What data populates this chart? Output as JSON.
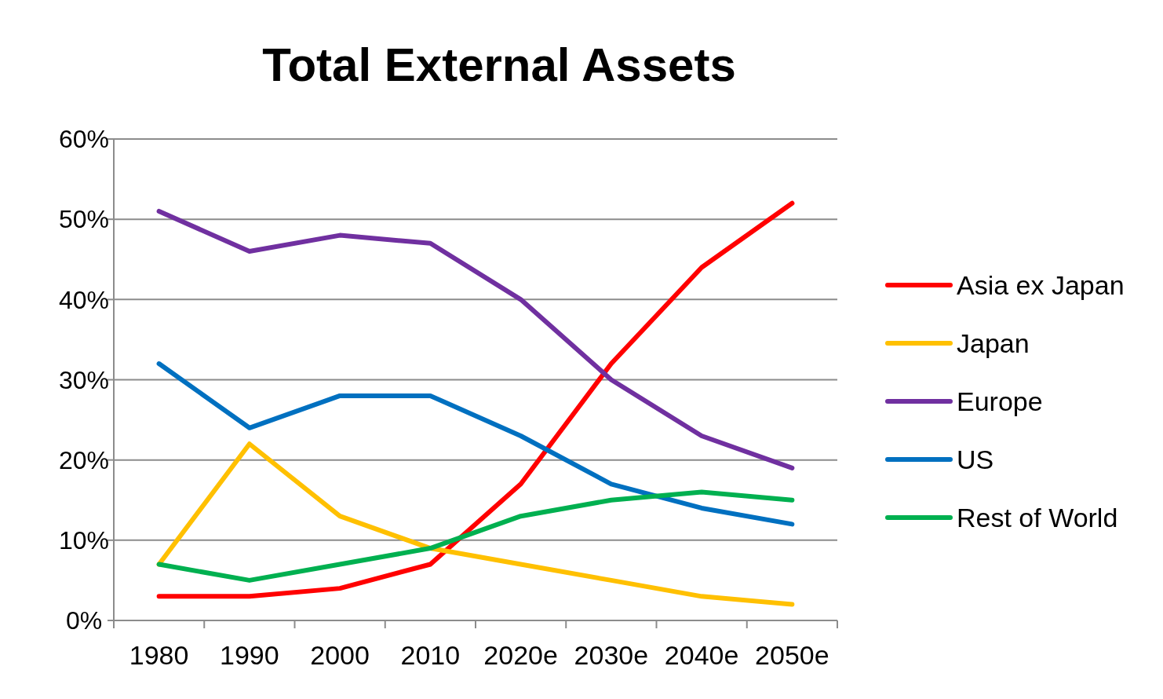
{
  "chart_data": {
    "type": "line",
    "title": "Total External Assets",
    "categories": [
      "1980",
      "1990",
      "2000",
      "2010",
      "2020e",
      "2030e",
      "2040e",
      "2050e"
    ],
    "series": [
      {
        "name": "Asia ex Japan",
        "color": "#ff0000",
        "values": [
          3,
          3,
          4,
          7,
          17,
          32,
          44,
          52
        ]
      },
      {
        "name": "Japan",
        "color": "#ffc000",
        "values": [
          7,
          22,
          13,
          9,
          7,
          5,
          3,
          2
        ]
      },
      {
        "name": "Europe",
        "color": "#7030a0",
        "values": [
          51,
          46,
          48,
          47,
          40,
          30,
          23,
          19
        ]
      },
      {
        "name": "US",
        "color": "#0070c0",
        "values": [
          32,
          24,
          28,
          28,
          23,
          17,
          14,
          12
        ]
      },
      {
        "name": "Rest of World",
        "color": "#00b050",
        "values": [
          7,
          5,
          7,
          9,
          13,
          15,
          16,
          15
        ]
      }
    ],
    "ylim": [
      0,
      60
    ],
    "yticks": [
      {
        "value": 0,
        "label": "0%"
      },
      {
        "value": 10,
        "label": "10%"
      },
      {
        "value": 20,
        "label": "20%"
      },
      {
        "value": 30,
        "label": "30%"
      },
      {
        "value": 40,
        "label": "40%"
      },
      {
        "value": 50,
        "label": "50%"
      },
      {
        "value": 60,
        "label": "60%"
      }
    ],
    "grid": "y",
    "legend": "right",
    "marker": "none",
    "line_style": "solid"
  }
}
